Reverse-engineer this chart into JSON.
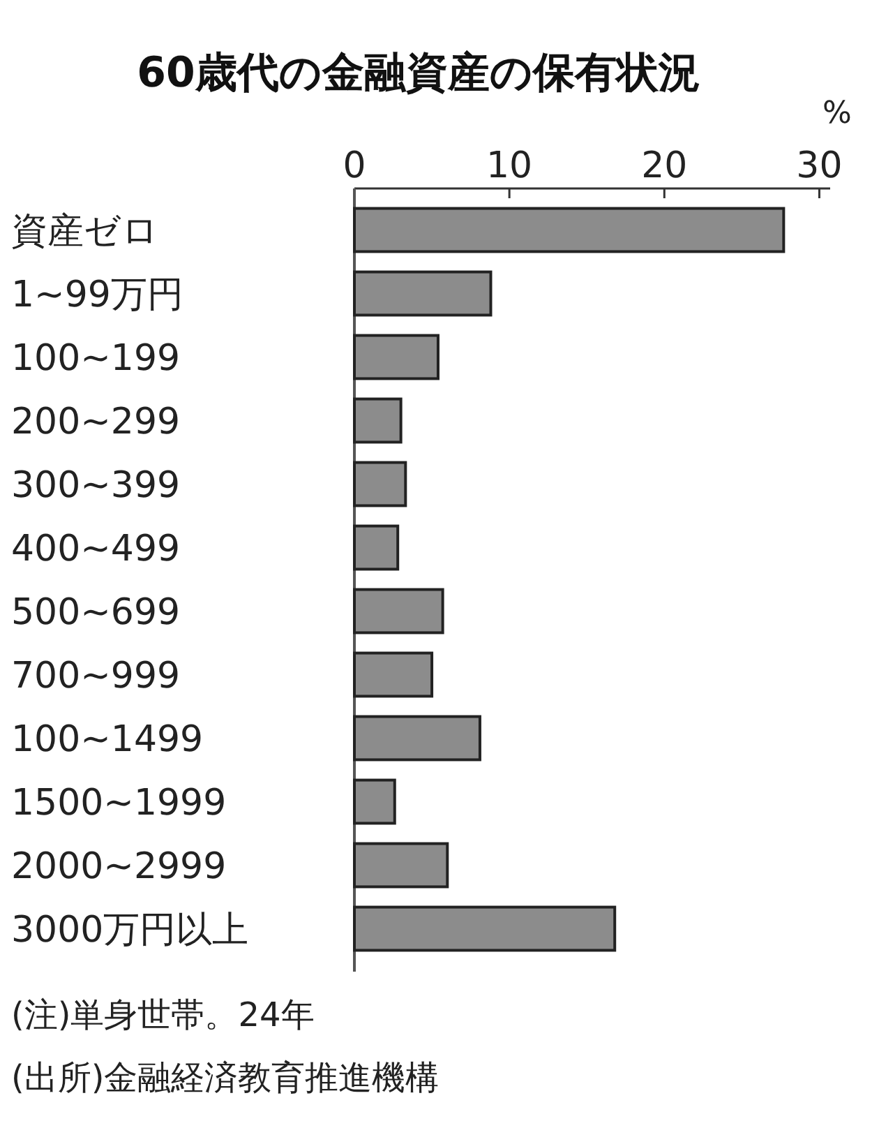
{
  "chart_data": {
    "type": "bar",
    "orientation": "horizontal",
    "title": "60歳代の金融資産の保有状況",
    "xlabel": "%",
    "categories": [
      "資産ゼロ",
      "1~99万円",
      "100~199",
      "200~299",
      "300~399",
      "400~499",
      "500~699",
      "700~999",
      "100~1499",
      "1500~1999",
      "2000~2999",
      "3000万円以上"
    ],
    "values": [
      27.7,
      8.8,
      5.4,
      3.0,
      3.3,
      2.8,
      5.7,
      5.0,
      8.1,
      2.6,
      6.0,
      16.8
    ],
    "color": "#8c8c8c",
    "xlim": [
      0,
      30.7
    ],
    "xticks": [
      0,
      10,
      20,
      30
    ],
    "grid": false,
    "annotations": [
      "(注)単身世帯。24年",
      "(出所)金融経済教育推進機構"
    ]
  }
}
